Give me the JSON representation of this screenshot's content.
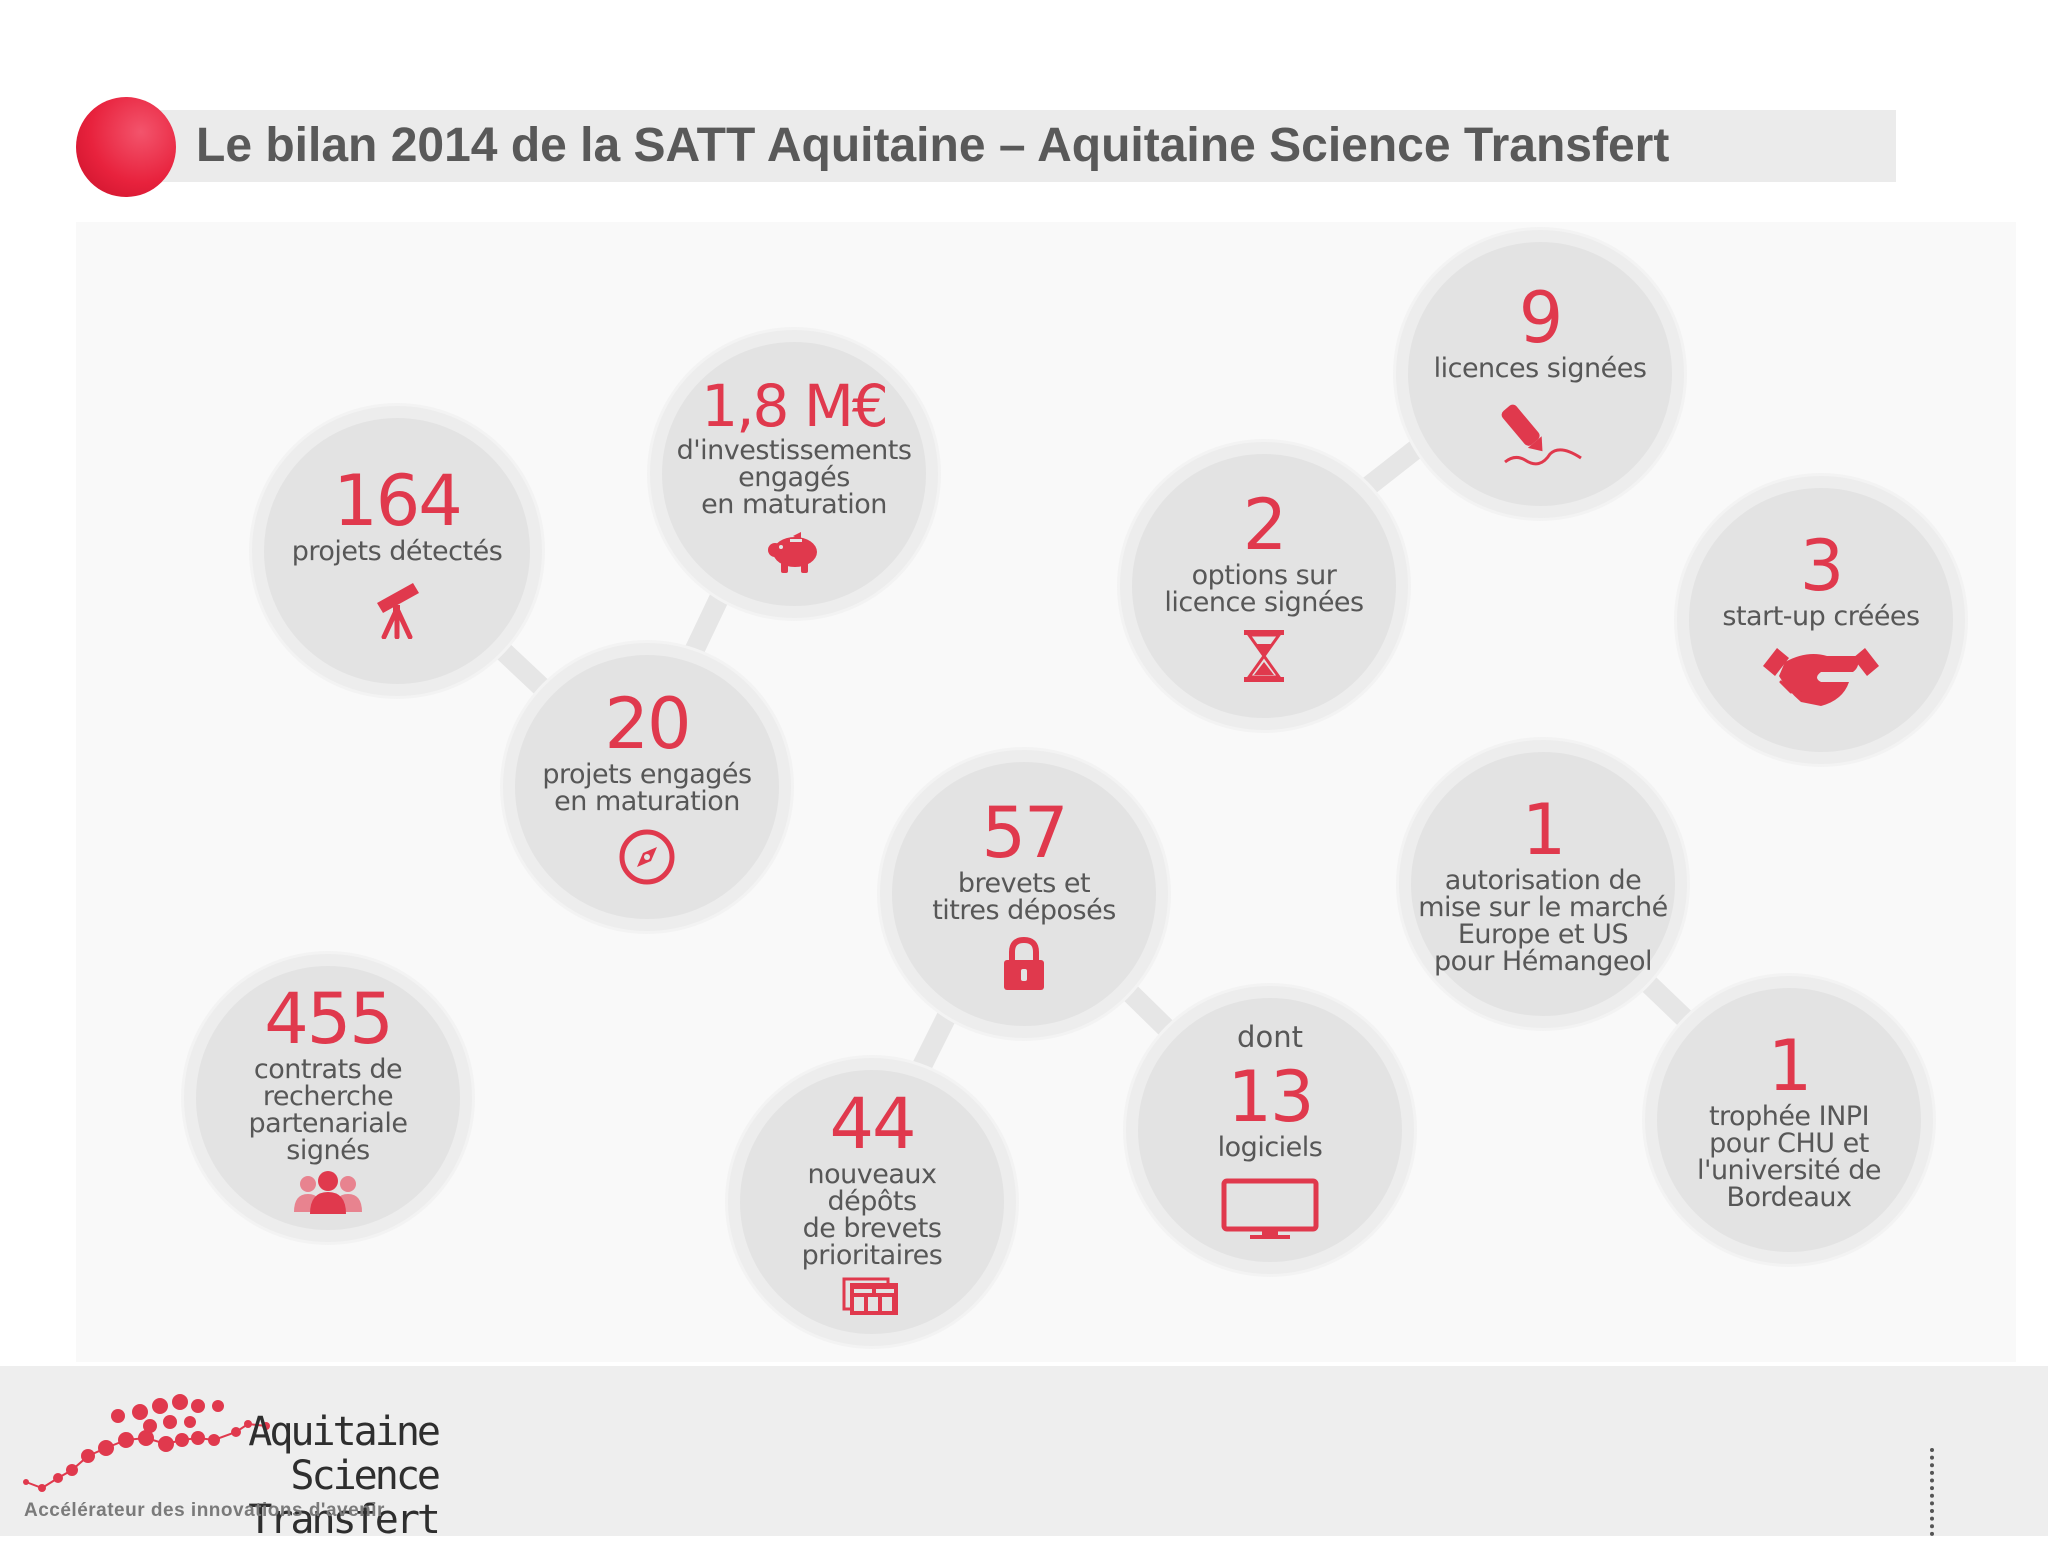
{
  "header": {
    "title": "Le bilan 2014 de la SATT Aquitaine – Aquitaine Science Transfert"
  },
  "colors": {
    "accent": "#e0394d",
    "bubble": "#e3e3e3",
    "text": "#575757",
    "title": "#595959"
  },
  "stats": [
    {
      "id": "projets-detectes",
      "value": "164",
      "label": "projets détectés",
      "icon": "telescope-icon"
    },
    {
      "id": "investissements",
      "value": "1,8 M€",
      "label": "d'investissements\nengagés\nen maturation",
      "icon": "piggy-bank-icon"
    },
    {
      "id": "projets-engages",
      "value": "20",
      "label": "projets engagés\nen maturation",
      "icon": "compass-icon"
    },
    {
      "id": "contrats",
      "value": "455",
      "label": "contrats de\nrecherche\npartenariale\nsignés",
      "icon": "people-icon"
    },
    {
      "id": "brevets",
      "value": "57",
      "label": "brevets et\ntitres déposés",
      "icon": "padlock-icon"
    },
    {
      "id": "depots",
      "value": "44",
      "label": "nouveaux\ndépôts\nde brevets\nprioritaires",
      "icon": "documents-icon"
    },
    {
      "id": "logiciels",
      "prefix": "dont",
      "value": "13",
      "label": "logiciels",
      "icon": "monitor-icon"
    },
    {
      "id": "licences",
      "value": "9",
      "label": "licences signées",
      "icon": "pen-signature-icon"
    },
    {
      "id": "options",
      "value": "2",
      "label": "options sur\nlicence signées",
      "icon": "hourglass-icon"
    },
    {
      "id": "startups",
      "value": "3",
      "label": "start-up créées",
      "icon": "handshake-icon"
    },
    {
      "id": "autorisation",
      "value": "1",
      "label": "autorisation de\nmise sur le marché\nEurope et US\npour Hémangeol"
    },
    {
      "id": "trophee",
      "value": "1",
      "label": "trophée INPI\npour CHU et\nl'université de\nBordeaux"
    }
  ],
  "footer": {
    "logo_name": "Aquitaine\nScience Transfert",
    "tagline": "Accélérateur des innovations d'avenir"
  }
}
